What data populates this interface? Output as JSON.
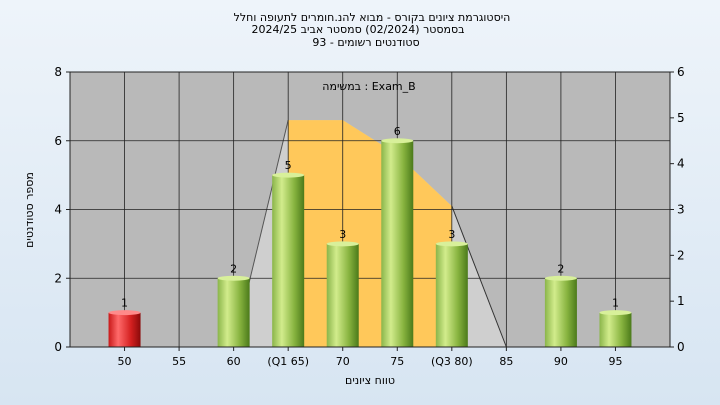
{
  "chart_data": {
    "type": "bar",
    "title_lines": [
      "היסטוגרמת ציונים בקורס - מבוא להנ.חומרים לתעופה וחלל",
      "בסמסטר  (02/2024)  סמסטר אביב 2024/25",
      "93 - סטודנטים רשומים"
    ],
    "annotation": "במשימה : Exam_B",
    "xlabel": "טווח ציונים",
    "ylabel": "מספר סטודנטים",
    "ylim": [
      0,
      8
    ],
    "y_ticks": [
      0,
      2,
      4,
      6,
      8
    ],
    "y2lim": [
      0,
      6
    ],
    "y2_ticks": [
      0,
      1,
      2,
      3,
      4,
      5,
      6
    ],
    "categories": [
      "50",
      "55",
      "60",
      "(Q1 65)",
      "70",
      "75",
      "(Q3 80)",
      "85",
      "90",
      "95"
    ],
    "values": [
      1,
      0,
      2,
      5,
      3,
      6,
      3,
      0,
      2,
      1
    ],
    "data_labels": [
      "1",
      "",
      "2",
      "5",
      "3",
      "6",
      "3",
      "",
      "2",
      "1"
    ],
    "bar_colors": [
      "#d42020",
      null,
      "#8fbf40",
      "#8fbf40",
      "#8fbf40",
      "#8fbf40",
      "#8fbf40",
      null,
      "#8fbf40",
      "#8fbf40"
    ],
    "background_area": [
      {
        "x": "60",
        "y": 0
      },
      {
        "x": "(Q1 65)",
        "y": 6.6
      },
      {
        "x": "70",
        "y": 6.6
      },
      {
        "x": "75",
        "y": 5.6
      },
      {
        "x": "(Q3 80)",
        "y": 4.1
      },
      {
        "x": "85",
        "y": 0
      }
    ],
    "iqr_area": [
      {
        "x": "(Q1 65)",
        "y": 6.6
      },
      {
        "x": "70",
        "y": 6.6
      },
      {
        "x": "75",
        "y": 5.6
      },
      {
        "x": "(Q3 80)",
        "y": 4.1
      }
    ],
    "colors": {
      "plot_bg": "#b9b9b9",
      "iqr_fill": "#ffc85a",
      "grey_area": "#cfcfcf"
    }
  }
}
